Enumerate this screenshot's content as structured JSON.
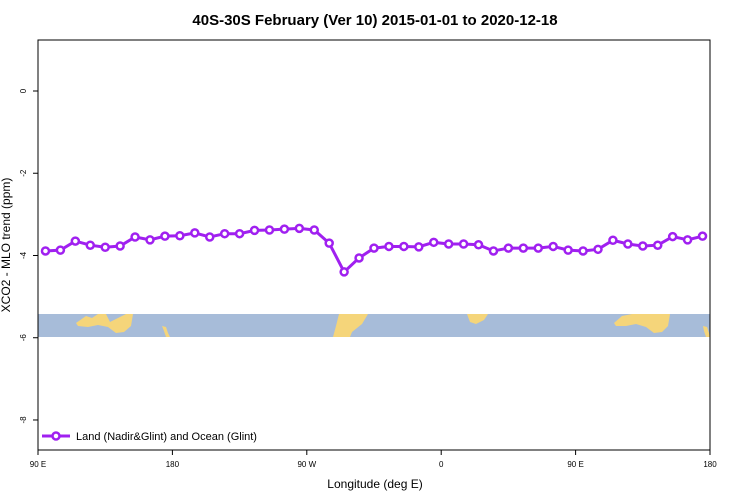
{
  "chart_data": {
    "type": "line",
    "title": "40S-30S February (Ver 10)   2015-01-01 to 2020-12-18",
    "x_label": "Longitude (deg E)",
    "y_label": "XCO2 - MLO trend (ppm)",
    "x": [
      95,
      105,
      115,
      125,
      135,
      145,
      155,
      165,
      175,
      185,
      195,
      205,
      215,
      225,
      235,
      245,
      255,
      265,
      275,
      285,
      295,
      305,
      315,
      325,
      335,
      345,
      355,
      365,
      375,
      385,
      395,
      405,
      415,
      425,
      435,
      445,
      455,
      465,
      475,
      485,
      495,
      505,
      515,
      525,
      535
    ],
    "series": [
      {
        "name": "Land (Nadir&Glint) and Ocean (Glint)",
        "color": "#a020f0",
        "values": [
          -3.89,
          -3.87,
          -3.65,
          -3.75,
          -3.8,
          -3.77,
          -3.55,
          -3.62,
          -3.53,
          -3.52,
          -3.45,
          -3.55,
          -3.47,
          -3.47,
          -3.39,
          -3.38,
          -3.36,
          -3.34,
          -3.38,
          -3.7,
          -4.4,
          -4.06,
          -3.82,
          -3.78,
          -3.78,
          -3.79,
          -3.68,
          -3.72,
          -3.72,
          -3.74,
          -3.89,
          -3.82,
          -3.82,
          -3.82,
          -3.78,
          -3.87,
          -3.89,
          -3.85,
          -3.63,
          -3.72,
          -3.77,
          -3.75,
          -3.54,
          -3.62,
          -3.53
        ]
      }
    ],
    "xlim": [
      90,
      540
    ],
    "xticks": [
      {
        "value": 90,
        "label": "90 E"
      },
      {
        "value": 180,
        "label": "180"
      },
      {
        "value": 270,
        "label": "90 W"
      },
      {
        "value": 360,
        "label": "0"
      },
      {
        "value": 450,
        "label": "90 E"
      },
      {
        "value": 540,
        "label": "180"
      }
    ],
    "ylim": [
      -8.73,
      1.24
    ],
    "yticks": [
      0,
      -2,
      -4,
      -6,
      -8
    ],
    "legend": "bottom-left"
  }
}
